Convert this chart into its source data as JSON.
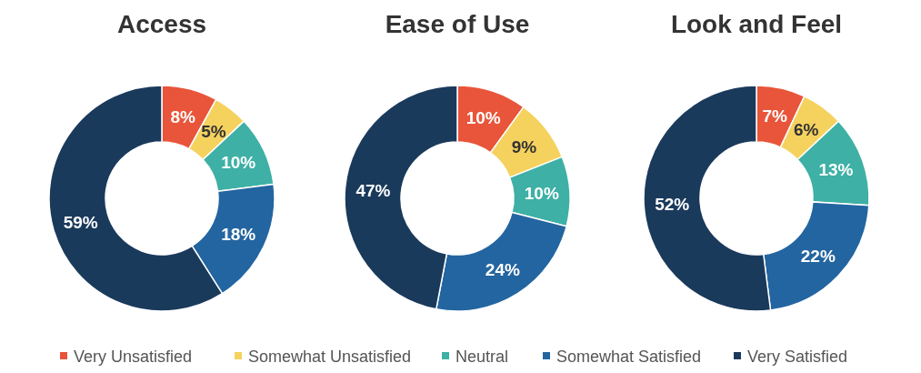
{
  "chart_data": [
    {
      "type": "donut",
      "title": "Access",
      "categories": [
        "Very Unsatisfied",
        "Somewhat Unsatisfied",
        "Neutral",
        "Somewhat Satisfied",
        "Very Satisfied"
      ],
      "values": [
        8,
        5,
        10,
        18,
        59
      ],
      "value_labels": [
        "8%",
        "5%",
        "10%",
        "18%",
        "59%"
      ],
      "colors": [
        "#e8553a",
        "#f5d25e",
        "#3eb0a5",
        "#2365a0",
        "#1a3a5c"
      ],
      "legend": "bottom"
    },
    {
      "type": "donut",
      "title": "Ease of Use",
      "categories": [
        null,
        null,
        null,
        null,
        null
      ],
      "values": [
        10,
        9,
        10,
        24,
        47
      ],
      "value_labels": [
        "10%",
        "9%",
        "10%",
        "24%",
        "47%"
      ],
      "colors": [
        "#e8553a",
        "#f5d25e",
        "#3eb0a5",
        "#2365a0",
        "#1a3a5c"
      ]
    },
    {
      "type": "donut",
      "title": "Look and Feel",
      "categories": [
        null,
        null,
        null,
        null,
        null
      ],
      "values": [
        7,
        6,
        13,
        22,
        52
      ],
      "value_labels": [
        "7%",
        "6%",
        "13%",
        "22%",
        "52%"
      ],
      "colors": [
        "#e8553a",
        "#f5d25e",
        "#3eb0a5",
        "#2365a0",
        "#1a3a5c"
      ]
    }
  ]
}
